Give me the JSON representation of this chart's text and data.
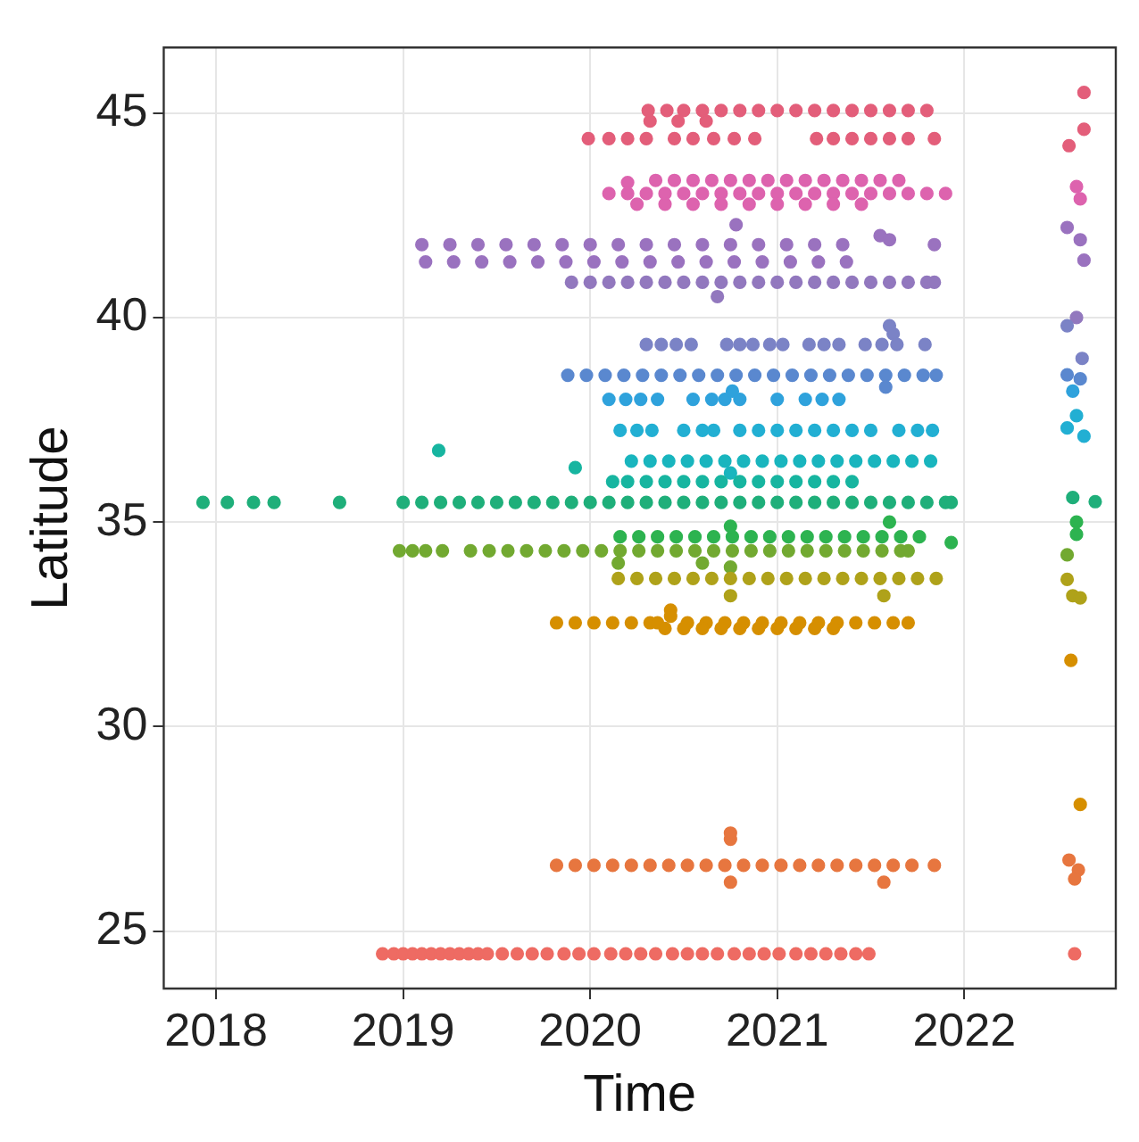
{
  "chart_data": {
    "type": "scatter",
    "xlabel": "Time",
    "ylabel": "Latitude",
    "xlim": [
      2017.72,
      2022.81
    ],
    "ylim": [
      23.6,
      46.6
    ],
    "xticks": [
      2018,
      2019,
      2020,
      2021,
      2022
    ],
    "yticks": [
      25,
      30,
      35,
      40,
      45
    ],
    "grid": true,
    "legend": false,
    "marker": "circle",
    "series": [
      {
        "color": "#ee6b63",
        "x": [
          2018.89,
          2018.95,
          2019.0,
          2019.05,
          2019.1,
          2019.15,
          2019.2,
          2019.25,
          2019.3,
          2019.35,
          2019.4,
          2019.45,
          2019.53,
          2019.61,
          2019.69,
          2019.77,
          2019.86,
          2019.94,
          2020.02,
          2020.11,
          2020.19,
          2020.27,
          2020.35,
          2020.44,
          2020.52,
          2020.6,
          2020.68,
          2020.77,
          2020.85,
          2020.93,
          2021.01,
          2021.1,
          2021.18,
          2021.26,
          2021.34,
          2021.42,
          2021.49,
          2022.59
        ],
        "values": [
          24.45,
          24.45,
          24.45,
          24.45,
          24.45,
          24.45,
          24.45,
          24.45,
          24.45,
          24.45,
          24.45,
          24.45,
          24.45,
          24.45,
          24.45,
          24.45,
          24.45,
          24.45,
          24.45,
          24.45,
          24.45,
          24.45,
          24.45,
          24.45,
          24.45,
          24.45,
          24.45,
          24.45,
          24.45,
          24.45,
          24.45,
          24.45,
          24.45,
          24.45,
          24.45,
          24.45,
          24.45,
          24.45
        ]
      },
      {
        "color": "#e7763f",
        "x": [
          2019.82,
          2019.92,
          2020.02,
          2020.12,
          2020.22,
          2020.32,
          2020.42,
          2020.52,
          2020.62,
          2020.72,
          2020.82,
          2020.92,
          2021.02,
          2021.12,
          2021.22,
          2021.32,
          2021.42,
          2021.52,
          2021.62,
          2021.72,
          2021.84,
          2020.75,
          2020.75,
          2020.75,
          2021.57,
          2022.56,
          2022.61,
          2022.59
        ],
        "values": [
          26.61,
          26.61,
          26.61,
          26.61,
          26.61,
          26.61,
          26.61,
          26.61,
          26.61,
          26.61,
          26.61,
          26.61,
          26.61,
          26.61,
          26.61,
          26.61,
          26.61,
          26.61,
          26.61,
          26.61,
          26.61,
          27.25,
          27.4,
          26.2,
          26.2,
          26.74,
          26.5,
          26.28
        ]
      },
      {
        "color": "#d68f00",
        "x": [
          2019.82,
          2019.92,
          2020.02,
          2020.12,
          2020.22,
          2020.32,
          2020.36,
          2020.52,
          2020.62,
          2020.72,
          2020.82,
          2020.92,
          2021.02,
          2021.12,
          2021.22,
          2021.32,
          2021.42,
          2021.52,
          2021.62,
          2021.7,
          2020.43,
          2020.43,
          2020.4,
          2020.5,
          2020.6,
          2020.7,
          2020.8,
          2020.9,
          2021.0,
          2021.1,
          2021.2,
          2021.3,
          2022.57,
          2022.62
        ],
        "values": [
          32.54,
          32.54,
          32.54,
          32.54,
          32.54,
          32.54,
          32.54,
          32.54,
          32.54,
          32.54,
          32.54,
          32.54,
          32.54,
          32.54,
          32.54,
          32.54,
          32.54,
          32.54,
          32.54,
          32.54,
          32.85,
          32.7,
          32.4,
          32.4,
          32.4,
          32.4,
          32.4,
          32.4,
          32.4,
          32.4,
          32.4,
          32.4,
          31.62,
          28.1
        ]
      },
      {
        "color": "#afa21a",
        "x": [
          2020.15,
          2020.25,
          2020.35,
          2020.45,
          2020.55,
          2020.65,
          2020.75,
          2020.85,
          2020.95,
          2021.05,
          2021.15,
          2021.25,
          2021.35,
          2021.45,
          2021.55,
          2021.65,
          2021.75,
          2021.85,
          2020.75,
          2021.57,
          2022.55,
          2022.58,
          2022.62
        ],
        "values": [
          33.62,
          33.62,
          33.62,
          33.62,
          33.62,
          33.62,
          33.62,
          33.62,
          33.62,
          33.62,
          33.62,
          33.62,
          33.62,
          33.62,
          33.62,
          33.62,
          33.62,
          33.62,
          33.2,
          33.2,
          33.6,
          33.2,
          33.15
        ]
      },
      {
        "color": "#72a931",
        "x": [
          2018.98,
          2019.05,
          2019.12,
          2019.21,
          2019.36,
          2019.46,
          2019.56,
          2019.66,
          2019.76,
          2019.86,
          2019.96,
          2020.06,
          2020.16,
          2020.26,
          2020.36,
          2020.46,
          2020.56,
          2020.66,
          2020.76,
          2020.86,
          2020.96,
          2021.06,
          2021.16,
          2021.26,
          2021.36,
          2021.46,
          2021.56,
          2021.66,
          2021.7,
          2022.55,
          2020.15,
          2020.6,
          2020.75
        ],
        "values": [
          34.3,
          34.3,
          34.3,
          34.3,
          34.3,
          34.3,
          34.3,
          34.3,
          34.3,
          34.3,
          34.3,
          34.3,
          34.3,
          34.3,
          34.3,
          34.3,
          34.3,
          34.3,
          34.3,
          34.3,
          34.3,
          34.3,
          34.3,
          34.3,
          34.3,
          34.3,
          34.3,
          34.3,
          34.3,
          34.2,
          34.0,
          34.0,
          33.9
        ]
      },
      {
        "color": "#2db350",
        "x": [
          2020.16,
          2020.26,
          2020.36,
          2020.46,
          2020.56,
          2020.66,
          2020.76,
          2020.86,
          2020.96,
          2021.06,
          2021.16,
          2021.26,
          2021.36,
          2021.46,
          2021.56,
          2021.66,
          2021.76,
          2021.93,
          2022.6,
          2022.6,
          2021.6,
          2020.75
        ],
        "values": [
          34.64,
          34.64,
          34.64,
          34.64,
          34.64,
          34.64,
          34.64,
          34.64,
          34.64,
          34.64,
          34.64,
          34.64,
          34.64,
          34.64,
          34.64,
          34.64,
          34.64,
          34.5,
          34.7,
          35.0,
          35.0,
          34.9
        ]
      },
      {
        "color": "#1faf7a",
        "x": [
          2017.93,
          2018.06,
          2018.2,
          2018.31,
          2018.66,
          2019.0,
          2019.1,
          2019.2,
          2019.3,
          2019.4,
          2019.5,
          2019.6,
          2019.7,
          2019.8,
          2019.9,
          2020.0,
          2020.1,
          2020.2,
          2020.3,
          2020.4,
          2020.5,
          2020.6,
          2020.7,
          2020.8,
          2020.9,
          2021.0,
          2021.1,
          2021.2,
          2021.3,
          2021.4,
          2021.5,
          2021.6,
          2021.7,
          2021.8,
          2021.9,
          2021.93,
          2022.58,
          2022.7
        ],
        "values": [
          35.48,
          35.48,
          35.48,
          35.48,
          35.48,
          35.48,
          35.48,
          35.48,
          35.48,
          35.48,
          35.48,
          35.48,
          35.48,
          35.48,
          35.48,
          35.48,
          35.48,
          35.48,
          35.48,
          35.48,
          35.48,
          35.48,
          35.48,
          35.48,
          35.48,
          35.48,
          35.48,
          35.48,
          35.48,
          35.48,
          35.48,
          35.48,
          35.48,
          35.48,
          35.48,
          35.48,
          35.6,
          35.5
        ]
      },
      {
        "color": "#17b5a0",
        "x": [
          2020.12,
          2020.2,
          2020.3,
          2020.4,
          2020.5,
          2020.6,
          2020.7,
          2020.8,
          2020.9,
          2021.0,
          2021.1,
          2021.2,
          2021.3,
          2021.4,
          2019.19,
          2019.92
        ],
        "values": [
          35.99,
          35.99,
          35.99,
          35.99,
          35.99,
          35.99,
          35.99,
          35.99,
          35.99,
          35.99,
          35.99,
          35.99,
          35.99,
          35.99,
          36.75,
          36.33
        ]
      },
      {
        "color": "#19b5be",
        "x": [
          2020.22,
          2020.32,
          2020.42,
          2020.52,
          2020.62,
          2020.72,
          2020.82,
          2020.92,
          2021.02,
          2021.12,
          2021.22,
          2021.32,
          2021.42,
          2021.52,
          2021.62,
          2021.72,
          2021.82,
          2020.75
        ],
        "values": [
          36.49,
          36.49,
          36.49,
          36.49,
          36.49,
          36.49,
          36.49,
          36.49,
          36.49,
          36.49,
          36.49,
          36.49,
          36.49,
          36.49,
          36.49,
          36.49,
          36.49,
          36.2
        ]
      },
      {
        "color": "#22afd3",
        "x": [
          2020.16,
          2020.25,
          2020.33,
          2020.5,
          2020.6,
          2020.66,
          2020.8,
          2020.9,
          2021.0,
          2021.1,
          2021.2,
          2021.3,
          2021.4,
          2021.5,
          2021.65,
          2021.75,
          2021.83,
          2022.55,
          2022.6,
          2022.64
        ],
        "values": [
          37.24,
          37.24,
          37.24,
          37.24,
          37.24,
          37.24,
          37.24,
          37.24,
          37.24,
          37.24,
          37.24,
          37.24,
          37.24,
          37.24,
          37.24,
          37.24,
          37.24,
          37.3,
          37.6,
          37.1
        ]
      },
      {
        "color": "#2fa2dc",
        "x": [
          2020.1,
          2020.19,
          2020.27,
          2020.36,
          2020.55,
          2020.65,
          2020.72,
          2020.8,
          2021.0,
          2021.15,
          2021.24,
          2021.33,
          2020.76,
          2022.58
        ],
        "values": [
          38.0,
          38.0,
          38.0,
          38.0,
          38.0,
          38.0,
          38.0,
          38.0,
          38.0,
          38.0,
          38.0,
          38.0,
          38.2,
          38.2
        ]
      },
      {
        "color": "#5a88cf",
        "x": [
          2019.88,
          2019.98,
          2020.08,
          2020.18,
          2020.28,
          2020.38,
          2020.48,
          2020.58,
          2020.68,
          2020.78,
          2020.88,
          2020.98,
          2021.08,
          2021.18,
          2021.28,
          2021.38,
          2021.48,
          2021.58,
          2021.68,
          2021.78,
          2021.85,
          2021.58,
          2022.55,
          2022.62
        ],
        "values": [
          38.59,
          38.59,
          38.59,
          38.59,
          38.59,
          38.59,
          38.59,
          38.59,
          38.59,
          38.59,
          38.59,
          38.59,
          38.59,
          38.59,
          38.59,
          38.59,
          38.59,
          38.59,
          38.59,
          38.59,
          38.59,
          38.3,
          38.6,
          38.5
        ]
      },
      {
        "color": "#7b83c6",
        "x": [
          2020.3,
          2020.38,
          2020.46,
          2020.54,
          2020.73,
          2020.8,
          2020.87,
          2020.96,
          2021.03,
          2021.17,
          2021.25,
          2021.33,
          2021.47,
          2021.56,
          2021.64,
          2021.79,
          2021.6,
          2021.62,
          2022.55,
          2022.63
        ],
        "values": [
          39.34,
          39.34,
          39.34,
          39.34,
          39.34,
          39.34,
          39.34,
          39.34,
          39.34,
          39.34,
          39.34,
          39.34,
          39.34,
          39.34,
          39.34,
          39.34,
          39.8,
          39.6,
          39.8,
          39.0
        ]
      },
      {
        "color": "#9278be",
        "x": [
          2019.9,
          2020.0,
          2020.1,
          2020.2,
          2020.3,
          2020.4,
          2020.5,
          2020.6,
          2020.7,
          2020.8,
          2020.9,
          2021.0,
          2021.1,
          2021.2,
          2021.3,
          2021.4,
          2021.5,
          2021.6,
          2021.7,
          2021.8,
          2021.84,
          2020.68,
          2022.6
        ],
        "values": [
          40.86,
          40.86,
          40.86,
          40.86,
          40.86,
          40.86,
          40.86,
          40.86,
          40.86,
          40.86,
          40.86,
          40.86,
          40.86,
          40.86,
          40.86,
          40.86,
          40.86,
          40.86,
          40.86,
          40.86,
          40.86,
          40.51,
          40.0
        ]
      },
      {
        "color": "#9a72bf",
        "x": [
          2019.1,
          2019.25,
          2019.4,
          2019.55,
          2019.7,
          2019.85,
          2020.0,
          2020.15,
          2020.3,
          2020.45,
          2020.6,
          2020.75,
          2020.9,
          2021.05,
          2021.2,
          2021.35,
          2021.84,
          2019.12,
          2019.27,
          2019.42,
          2019.57,
          2019.72,
          2019.87,
          2020.02,
          2020.17,
          2020.32,
          2020.47,
          2020.62,
          2020.77,
          2020.92,
          2021.07,
          2021.22,
          2021.37,
          2020.78,
          2021.55,
          2021.6,
          2022.55,
          2022.62,
          2022.64
        ],
        "values": [
          41.78,
          41.78,
          41.78,
          41.78,
          41.78,
          41.78,
          41.78,
          41.78,
          41.78,
          41.78,
          41.78,
          41.78,
          41.78,
          41.78,
          41.78,
          41.78,
          41.78,
          41.36,
          41.36,
          41.36,
          41.36,
          41.36,
          41.36,
          41.36,
          41.36,
          41.36,
          41.36,
          41.36,
          41.36,
          41.36,
          41.36,
          41.36,
          41.36,
          42.27,
          42.0,
          41.9,
          42.2,
          41.9,
          41.4
        ]
      },
      {
        "color": "#dd63ae",
        "x": [
          2020.1,
          2020.2,
          2020.3,
          2020.4,
          2020.5,
          2020.6,
          2020.7,
          2020.8,
          2020.9,
          2021.0,
          2021.1,
          2021.2,
          2021.3,
          2021.4,
          2021.5,
          2021.6,
          2021.7,
          2021.8,
          2021.9,
          2020.35,
          2020.45,
          2020.55,
          2020.65,
          2020.75,
          2020.85,
          2020.95,
          2021.05,
          2021.15,
          2021.25,
          2021.35,
          2021.45,
          2021.55,
          2021.65,
          2020.25,
          2020.4,
          2020.55,
          2020.7,
          2020.85,
          2021.0,
          2021.15,
          2021.3,
          2021.45,
          2020.2,
          2022.6,
          2022.62
        ],
        "values": [
          43.03,
          43.03,
          43.03,
          43.03,
          43.03,
          43.03,
          43.03,
          43.03,
          43.03,
          43.03,
          43.03,
          43.03,
          43.03,
          43.03,
          43.03,
          43.03,
          43.03,
          43.03,
          43.03,
          43.35,
          43.35,
          43.35,
          43.35,
          43.35,
          43.35,
          43.35,
          43.35,
          43.35,
          43.35,
          43.35,
          43.35,
          43.35,
          43.35,
          42.77,
          42.77,
          42.77,
          42.77,
          42.77,
          42.77,
          42.77,
          42.77,
          42.77,
          43.3,
          43.2,
          42.9
        ]
      },
      {
        "color": "#e35e7a",
        "x": [
          2019.99,
          2020.1,
          2020.2,
          2020.3,
          2020.45,
          2020.55,
          2020.66,
          2020.77,
          2020.88,
          2021.21,
          2021.3,
          2021.4,
          2021.5,
          2021.6,
          2021.7,
          2021.84,
          2020.31,
          2020.41,
          2020.5,
          2020.6,
          2020.7,
          2020.8,
          2020.9,
          2021.0,
          2021.1,
          2021.2,
          2021.3,
          2021.4,
          2021.5,
          2021.6,
          2021.7,
          2021.8,
          2020.32,
          2020.47,
          2020.62,
          2022.56,
          2022.64,
          2022.64
        ],
        "values": [
          44.37,
          44.37,
          44.37,
          44.37,
          44.37,
          44.37,
          44.37,
          44.37,
          44.37,
          44.37,
          44.37,
          44.37,
          44.37,
          44.37,
          44.37,
          44.37,
          45.06,
          45.06,
          45.06,
          45.06,
          45.06,
          45.06,
          45.06,
          45.06,
          45.06,
          45.06,
          45.06,
          45.06,
          45.06,
          45.06,
          45.06,
          45.06,
          44.8,
          44.8,
          44.8,
          44.2,
          44.6,
          45.5
        ]
      }
    ]
  }
}
